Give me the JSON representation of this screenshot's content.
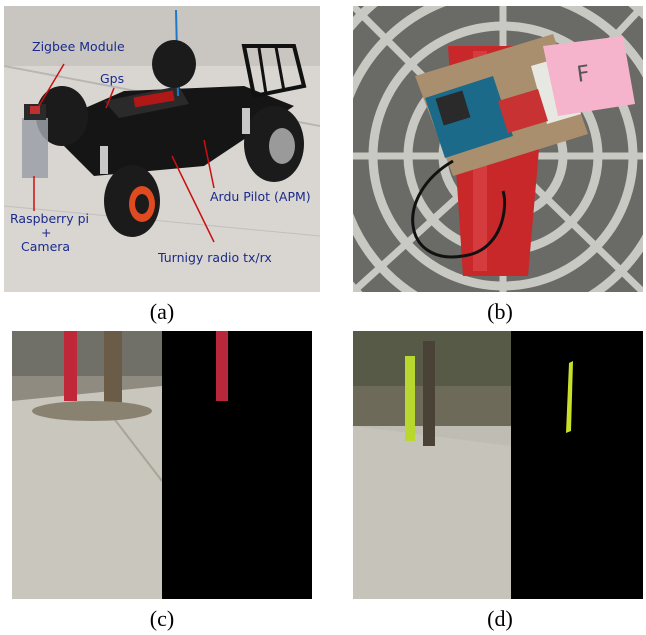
{
  "figure": {
    "panels": [
      {
        "id": "a",
        "caption": "(a)"
      },
      {
        "id": "b",
        "caption": "(b)"
      },
      {
        "id": "c",
        "caption": "(c)"
      },
      {
        "id": "d",
        "caption": "(d)"
      }
    ],
    "panel_a_labels": {
      "zigbee": "Zigbee  Module",
      "gps": "Gps",
      "apm": "Ardu Pilot (APM)",
      "raspberry_line1": "Raspberry pi",
      "raspberry_line2": "+",
      "raspberry_line3": "Camera",
      "turnigy": "Turnigy radio tx/rx"
    },
    "panel_b_sign": "F"
  }
}
